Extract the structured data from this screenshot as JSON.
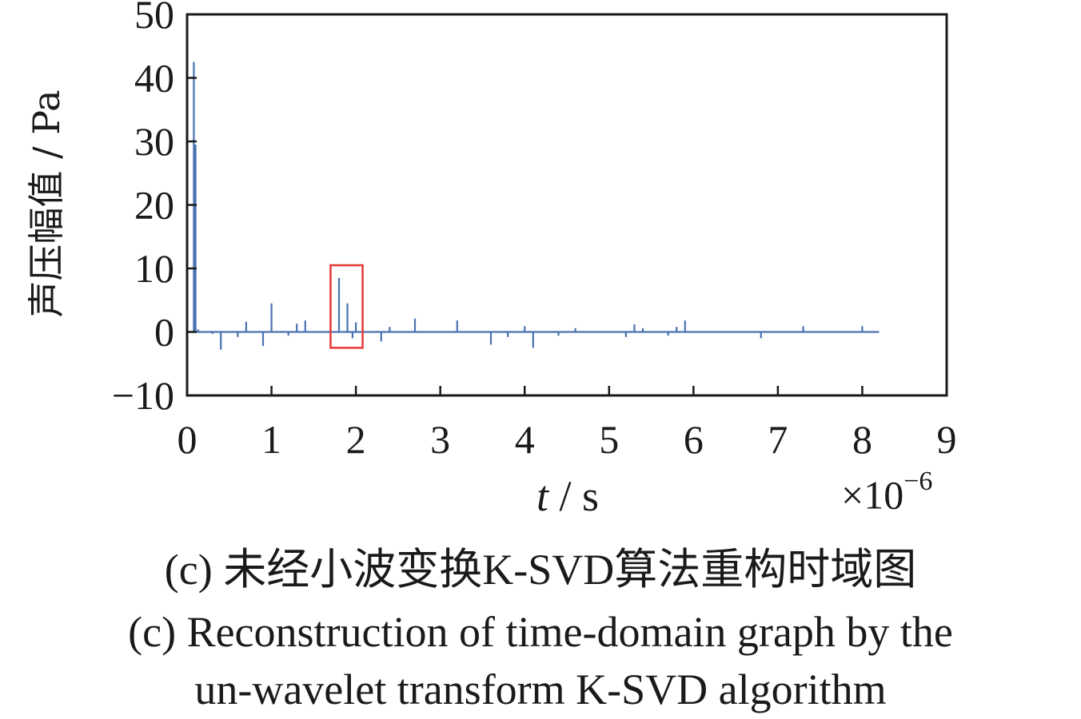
{
  "chart_data": {
    "type": "line",
    "xlabel_var": "t",
    "xlabel_unit": "/ s",
    "x_multiplier_base": "×10",
    "x_multiplier_exp": "−6",
    "ylabel": "声压幅值 / Pa",
    "xlim": [
      0,
      9
    ],
    "ylim": [
      -10,
      50
    ],
    "x_ticks": [
      "0",
      "1",
      "2",
      "3",
      "4",
      "5",
      "6",
      "7",
      "8",
      "9"
    ],
    "y_ticks": [
      "−10",
      "0",
      "10",
      "20",
      "30",
      "40",
      "50"
    ],
    "grid": false,
    "series": [
      {
        "color": "#4a72b0",
        "spikes": [
          {
            "x": 0.08,
            "y": 42.5
          },
          {
            "x": 0.1,
            "y": 29.5
          },
          {
            "x": 0.13,
            "y": 0.4
          },
          {
            "x": 0.3,
            "y": -0.3
          },
          {
            "x": 0.4,
            "y": -2.8
          },
          {
            "x": 0.6,
            "y": -0.8
          },
          {
            "x": 0.7,
            "y": 1.6
          },
          {
            "x": 0.9,
            "y": -2.2
          },
          {
            "x": 1.0,
            "y": 4.5
          },
          {
            "x": 1.2,
            "y": -0.6
          },
          {
            "x": 1.3,
            "y": 1.3
          },
          {
            "x": 1.4,
            "y": 1.8
          },
          {
            "x": 1.8,
            "y": 8.5
          },
          {
            "x": 1.9,
            "y": 4.5
          },
          {
            "x": 1.96,
            "y": -1.0
          },
          {
            "x": 2.0,
            "y": 1.5
          },
          {
            "x": 2.3,
            "y": -1.5
          },
          {
            "x": 2.4,
            "y": 0.8
          },
          {
            "x": 2.7,
            "y": 2.1
          },
          {
            "x": 3.2,
            "y": 1.8
          },
          {
            "x": 3.6,
            "y": -2.0
          },
          {
            "x": 3.8,
            "y": -0.8
          },
          {
            "x": 4.0,
            "y": 0.9
          },
          {
            "x": 4.1,
            "y": -2.5
          },
          {
            "x": 4.4,
            "y": -0.6
          },
          {
            "x": 4.6,
            "y": 0.6
          },
          {
            "x": 5.2,
            "y": -0.8
          },
          {
            "x": 5.3,
            "y": 1.2
          },
          {
            "x": 5.4,
            "y": 0.6
          },
          {
            "x": 5.7,
            "y": -0.6
          },
          {
            "x": 5.8,
            "y": 0.8
          },
          {
            "x": 5.9,
            "y": 1.8
          },
          {
            "x": 6.8,
            "y": -1.0
          },
          {
            "x": 7.3,
            "y": 0.9
          },
          {
            "x": 8.0,
            "y": 0.9
          }
        ],
        "x_end": 8.2
      }
    ],
    "annotation_box": {
      "x0": 1.7,
      "x1": 2.08,
      "y0": -2.5,
      "y1": 10.5,
      "color": "#e53935"
    }
  },
  "captions": {
    "zh": "(c)  未经小波变换K-SVD算法重构时域图",
    "en_line1": "(c)  Reconstruction of time-domain graph by the",
    "en_line2": "un-wavelet transform K-SVD algorithm"
  }
}
